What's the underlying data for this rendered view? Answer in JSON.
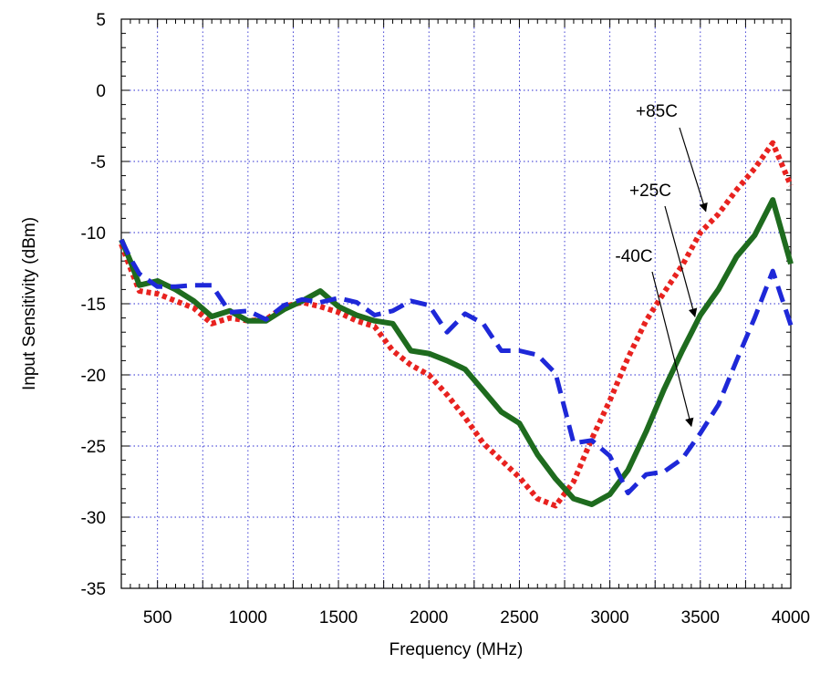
{
  "chart_data": {
    "type": "line",
    "xlabel": "Frequency (MHz)",
    "ylabel": "Input Sensitivity (dBm)",
    "xlim": [
      300,
      4000
    ],
    "ylim": [
      -35,
      5
    ],
    "xticks": [
      500,
      1000,
      1500,
      2000,
      2500,
      3000,
      3500,
      4000
    ],
    "yticks": [
      -35,
      -30,
      -25,
      -20,
      -15,
      -10,
      -5,
      0,
      5
    ],
    "xtick_labels": [
      "500",
      "1000",
      "1500",
      "2000",
      "2500",
      "3000",
      "3500",
      "4000"
    ],
    "ytick_labels": [
      "-35",
      "-30",
      "-25",
      "-20",
      "-15",
      "-10",
      "-5",
      "0",
      "5"
    ],
    "grid_x": [
      500,
      750,
      1000,
      1250,
      1500,
      1750,
      2000,
      2250,
      2500,
      2750,
      3000,
      3250,
      3500,
      3750
    ],
    "grid_y": [
      -30,
      -25,
      -20,
      -15,
      -10,
      -5,
      0
    ],
    "grid": true,
    "legend": "none",
    "series": [
      {
        "name": "+85C",
        "color": "#e8221f",
        "style": "dotted",
        "x": [
          300,
          350,
          400,
          500,
          600,
          700,
          800,
          900,
          1000,
          1100,
          1200,
          1300,
          1400,
          1500,
          1600,
          1700,
          1800,
          1900,
          2000,
          2100,
          2200,
          2300,
          2400,
          2500,
          2600,
          2700,
          2800,
          2900,
          3000,
          3100,
          3200,
          3300,
          3400,
          3500,
          3600,
          3700,
          3800,
          3900,
          4000
        ],
        "y": [
          -10.8,
          -12.5,
          -14.1,
          -14.3,
          -14.8,
          -15.3,
          -16.4,
          -16.0,
          -16.2,
          -16.1,
          -15.2,
          -14.9,
          -15.2,
          -15.6,
          -16.2,
          -16.6,
          -18.3,
          -19.3,
          -20.0,
          -21.4,
          -23.0,
          -24.8,
          -26.0,
          -27.2,
          -28.7,
          -29.2,
          -27.5,
          -24.5,
          -21.8,
          -18.8,
          -16.2,
          -14.2,
          -12.3,
          -10.0,
          -8.7,
          -7.0,
          -5.5,
          -3.7,
          -6.7
        ]
      },
      {
        "name": "+25C",
        "color": "#1e6b1e",
        "style": "solid",
        "x": [
          300,
          350,
          400,
          500,
          600,
          700,
          800,
          900,
          1000,
          1100,
          1200,
          1300,
          1400,
          1500,
          1600,
          1700,
          1800,
          1900,
          2000,
          2100,
          2200,
          2300,
          2400,
          2500,
          2600,
          2700,
          2800,
          2900,
          3000,
          3100,
          3200,
          3300,
          3400,
          3500,
          3600,
          3700,
          3800,
          3900,
          4000
        ],
        "y": [
          -10.5,
          -12.0,
          -13.7,
          -13.4,
          -14.0,
          -14.8,
          -15.9,
          -15.5,
          -16.2,
          -16.2,
          -15.4,
          -14.8,
          -14.1,
          -15.2,
          -15.8,
          -16.2,
          -16.4,
          -18.3,
          -18.5,
          -19.0,
          -19.6,
          -21.1,
          -22.6,
          -23.4,
          -25.6,
          -27.3,
          -28.7,
          -29.1,
          -28.4,
          -26.7,
          -24.0,
          -21.0,
          -18.3,
          -15.8,
          -14.0,
          -11.7,
          -10.2,
          -7.7,
          -12.2
        ]
      },
      {
        "name": "-40C",
        "color": "#1e28d8",
        "style": "dashed",
        "x": [
          300,
          350,
          400,
          500,
          600,
          700,
          800,
          900,
          1000,
          1100,
          1200,
          1300,
          1400,
          1500,
          1600,
          1700,
          1800,
          1900,
          2000,
          2100,
          2200,
          2300,
          2400,
          2500,
          2600,
          2700,
          2800,
          2900,
          3000,
          3100,
          3200,
          3300,
          3400,
          3500,
          3600,
          3700,
          3800,
          3900,
          4000
        ],
        "y": [
          -10.5,
          -11.8,
          -12.9,
          -13.8,
          -13.8,
          -13.7,
          -13.7,
          -15.6,
          -15.5,
          -16.1,
          -15.1,
          -14.7,
          -14.9,
          -14.6,
          -14.9,
          -15.8,
          -15.5,
          -14.8,
          -15.1,
          -17.0,
          -15.7,
          -16.4,
          -18.3,
          -18.3,
          -18.6,
          -19.9,
          -24.8,
          -24.6,
          -25.7,
          -28.3,
          -27.0,
          -26.8,
          -25.9,
          -24.1,
          -22.1,
          -19.0,
          -16.0,
          -12.7,
          -16.5
        ]
      }
    ],
    "annotations": [
      {
        "text": "+85C",
        "series": "+85C",
        "arrow_to": [
          3530,
          -8.5
        ]
      },
      {
        "text": "+25C",
        "series": "+25C",
        "arrow_to": [
          3470,
          -15.9
        ]
      },
      {
        "text": "-40C",
        "series": "-40C",
        "arrow_to": [
          3450,
          -23.6
        ]
      }
    ]
  }
}
